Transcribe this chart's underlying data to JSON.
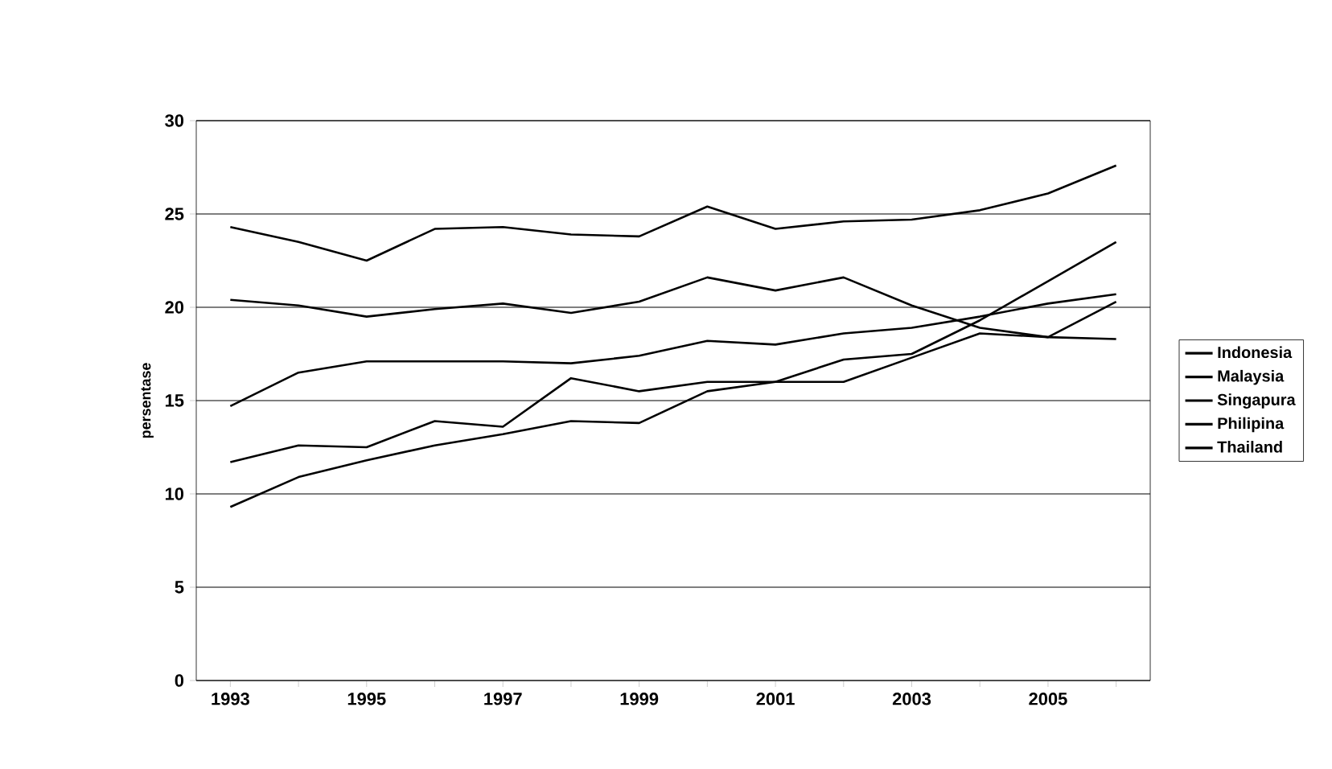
{
  "chart_data": {
    "type": "line",
    "ylabel": "persentase",
    "categories": [
      "1993",
      null,
      "1995",
      null,
      "1997",
      null,
      "1999",
      null,
      "2001",
      null,
      "2003",
      null,
      "2005",
      null
    ],
    "series": [
      {
        "name": "Indonesia",
        "color": "#000000",
        "values": [
          14.7,
          16.5,
          17.1,
          17.1,
          17.1,
          17.0,
          17.4,
          18.2,
          18.0,
          18.6,
          18.9,
          19.5,
          20.2,
          20.7
        ]
      },
      {
        "name": "Malaysia",
        "color": "#000000",
        "values": [
          24.3,
          23.5,
          22.5,
          24.2,
          24.3,
          23.9,
          23.8,
          25.4,
          24.2,
          24.6,
          24.7,
          25.2,
          26.1,
          27.6
        ]
      },
      {
        "name": "Singapura",
        "color": "#000000",
        "values": [
          20.4,
          20.1,
          19.5,
          19.9,
          20.2,
          19.7,
          20.3,
          21.6,
          20.9,
          21.6,
          20.1,
          18.9,
          18.4,
          18.3
        ]
      },
      {
        "name": "Philipina",
        "color": "#000000",
        "values": [
          9.3,
          10.9,
          11.8,
          12.6,
          13.2,
          13.9,
          13.8,
          15.5,
          16.0,
          16.0,
          17.3,
          18.6,
          18.4,
          20.3
        ]
      },
      {
        "name": "Thailand",
        "color": "#000000",
        "values": [
          11.7,
          12.6,
          12.5,
          13.9,
          13.6,
          16.2,
          15.5,
          16.0,
          16.0,
          17.2,
          17.5,
          19.3,
          21.4,
          23.5
        ]
      }
    ],
    "ylim": [
      0,
      30
    ],
    "yticks": [
      0,
      5,
      10,
      15,
      20,
      25,
      30
    ],
    "grid": "y",
    "legend": "right",
    "marker": "none",
    "line_style": "solid"
  }
}
